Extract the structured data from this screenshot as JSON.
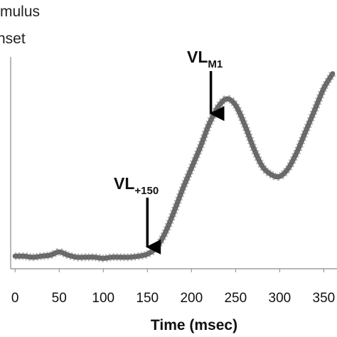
{
  "header": {
    "stimulus_onset_line1": "mulus",
    "stimulus_onset_line2": "nset"
  },
  "chart_data": {
    "type": "line",
    "xlabel": "Time (msec)",
    "ylabel": "",
    "xlim": [
      -5,
      365
    ],
    "ylim": [
      0,
      1
    ],
    "x_ticks": [
      0,
      50,
      100,
      150,
      200,
      250,
      300,
      350
    ],
    "x_tick_labels": [
      "0",
      "50",
      "100",
      "150",
      "200",
      "250",
      "300",
      "350"
    ],
    "grid": false,
    "y_ticks_shown": false,
    "line_color": "#555555",
    "annotations": [
      {
        "label": "VL",
        "subscript": "+150",
        "x": 150,
        "arrow": true
      },
      {
        "label": "VL",
        "subscript": "M1",
        "x": 222,
        "arrow": true
      }
    ],
    "series": [
      {
        "x": [
          0,
          10,
          20,
          30,
          40,
          50,
          60,
          70,
          80,
          90,
          100,
          110,
          120,
          130,
          140,
          150,
          160,
          170,
          180,
          190,
          200,
          210,
          220,
          230,
          240,
          250,
          260,
          270,
          280,
          290,
          300,
          310,
          320,
          330,
          340,
          350,
          360
        ],
        "y": [
          0.06,
          0.06,
          0.055,
          0.06,
          0.065,
          0.08,
          0.065,
          0.055,
          0.055,
          0.055,
          0.05,
          0.055,
          0.055,
          0.055,
          0.06,
          0.07,
          0.1,
          0.17,
          0.27,
          0.38,
          0.48,
          0.58,
          0.69,
          0.77,
          0.81,
          0.78,
          0.69,
          0.58,
          0.49,
          0.45,
          0.44,
          0.48,
          0.56,
          0.66,
          0.76,
          0.86,
          0.93
        ]
      }
    ]
  }
}
